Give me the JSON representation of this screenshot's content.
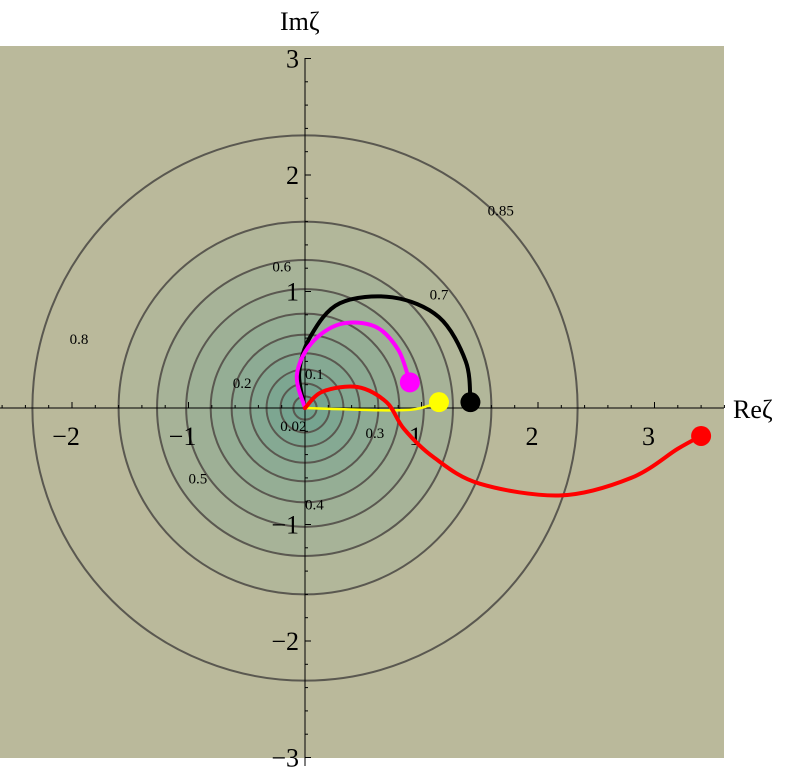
{
  "chart_data": {
    "type": "contour",
    "xlabel": "Reζ",
    "ylabel": "Imζ",
    "xlim": [
      -2.65,
      3.7
    ],
    "ylim": [
      -3.1,
      3.1
    ],
    "x_ticks": [
      {
        "value": -2,
        "label": "−2"
      },
      {
        "value": -1,
        "label": "−1"
      },
      {
        "value": 1,
        "label": "1"
      },
      {
        "value": 2,
        "label": "2"
      },
      {
        "value": 3,
        "label": "3"
      }
    ],
    "y_ticks": [
      {
        "value": -3,
        "label": "−3"
      },
      {
        "value": -2,
        "label": "−2"
      },
      {
        "value": -1,
        "label": "−1"
      },
      {
        "value": 1,
        "label": "1"
      },
      {
        "value": 2,
        "label": "2"
      },
      {
        "value": 3,
        "label": "3"
      }
    ],
    "contour_levels": [
      {
        "level": 0.02,
        "radius": 0.1
      },
      {
        "level": 0.1,
        "radius": 0.21
      },
      {
        "level": 0.2,
        "radius": 0.33
      },
      {
        "level": 0.3,
        "radius": 0.47
      },
      {
        "level": 0.4,
        "radius": 0.63
      },
      {
        "level": 0.5,
        "radius": 0.81
      },
      {
        "level": 0.6,
        "radius": 1.02
      },
      {
        "level": 0.7,
        "radius": 1.27
      },
      {
        "level": 0.8,
        "radius": 1.6
      },
      {
        "level": 0.85,
        "radius": 2.34
      }
    ],
    "contour_labels": [
      {
        "text": "0.02",
        "x": -0.1,
        "y": -0.17
      },
      {
        "text": "0.1",
        "x": 0.08,
        "y": 0.28
      },
      {
        "text": "0.2",
        "x": -0.54,
        "y": 0.2
      },
      {
        "text": "0.3",
        "x": 0.6,
        "y": -0.23
      },
      {
        "text": "0.4",
        "x": 0.08,
        "y": -0.84
      },
      {
        "text": "0.5",
        "x": -0.92,
        "y": -0.62
      },
      {
        "text": "0.6",
        "x": -0.2,
        "y": 1.2
      },
      {
        "text": "0.7",
        "x": 1.15,
        "y": 0.96
      },
      {
        "text": "0.8",
        "x": -1.94,
        "y": 0.58
      },
      {
        "text": "0.85",
        "x": 1.68,
        "y": 1.68
      }
    ],
    "colors": {
      "fill_outer": "#bab99b",
      "fill_inner": "#6fa28f",
      "contour_line": "#5a5850"
    },
    "series": [
      {
        "color": "#000000",
        "end_marker": true,
        "points": [
          [
            0,
            0
          ],
          [
            -0.05,
            0.3
          ],
          [
            0.05,
            0.62
          ],
          [
            0.3,
            0.9
          ],
          [
            0.75,
            0.95
          ],
          [
            1.15,
            0.78
          ],
          [
            1.38,
            0.4
          ],
          [
            1.42,
            0.05
          ]
        ]
      },
      {
        "color": "#ff00ff",
        "end_marker": true,
        "points": [
          [
            0,
            0
          ],
          [
            -0.07,
            0.28
          ],
          [
            0.05,
            0.55
          ],
          [
            0.3,
            0.72
          ],
          [
            0.6,
            0.7
          ],
          [
            0.8,
            0.5
          ],
          [
            0.9,
            0.22
          ]
        ]
      },
      {
        "color": "#ffff00",
        "end_marker": true,
        "points": [
          [
            0,
            0
          ],
          [
            0.3,
            -0.01
          ],
          [
            0.7,
            -0.02
          ],
          [
            0.95,
            -0.01
          ],
          [
            1.15,
            0.05
          ]
        ]
      },
      {
        "color": "#ff0000",
        "end_marker": true,
        "points": [
          [
            0,
            0
          ],
          [
            0.15,
            0.14
          ],
          [
            0.45,
            0.18
          ],
          [
            0.7,
            0.05
          ],
          [
            0.85,
            -0.18
          ],
          [
            1.1,
            -0.42
          ],
          [
            1.5,
            -0.65
          ],
          [
            2.2,
            -0.75
          ],
          [
            2.8,
            -0.6
          ],
          [
            3.2,
            -0.35
          ],
          [
            3.4,
            -0.24
          ]
        ]
      }
    ]
  }
}
